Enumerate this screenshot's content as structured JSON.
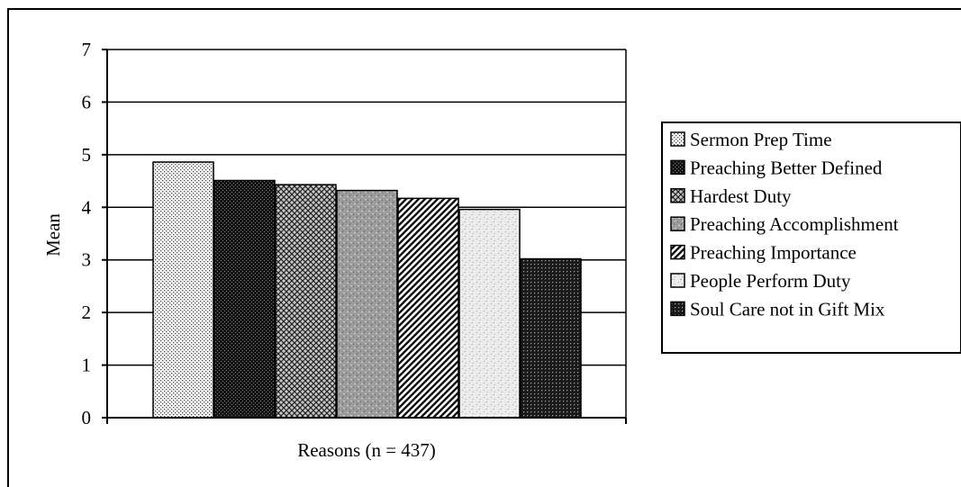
{
  "chart_data": {
    "type": "bar",
    "xlabel": "Reasons (n = 437)",
    "ylabel": "Mean",
    "ylim": [
      0,
      7
    ],
    "yticks": [
      "0",
      "1",
      "2",
      "3",
      "4",
      "5",
      "6",
      "7"
    ],
    "grid": true,
    "legend_position": "right",
    "series": [
      {
        "name": "Sermon Prep Time",
        "value": 4.86,
        "pattern": "fine-dots"
      },
      {
        "name": "Preaching Better Defined",
        "value": 4.51,
        "pattern": "dark-checker"
      },
      {
        "name": "Hardest Duty",
        "value": 4.43,
        "pattern": "crosshatch"
      },
      {
        "name": "Preaching Accomplishment",
        "value": 4.32,
        "pattern": "gray-noise"
      },
      {
        "name": "Preaching Importance",
        "value": 4.17,
        "pattern": "diagonal-stripes"
      },
      {
        "name": "People Perform Duty",
        "value": 3.96,
        "pattern": "light-noise"
      },
      {
        "name": "Soul Care not in Gift Mix",
        "value": 3.02,
        "pattern": "dark-dots"
      }
    ]
  }
}
